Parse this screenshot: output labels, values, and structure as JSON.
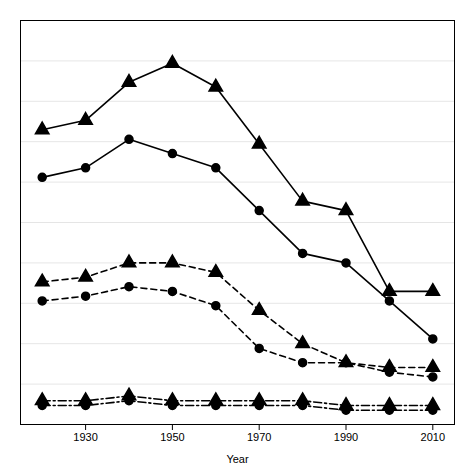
{
  "chart_data": {
    "type": "line",
    "x": [
      1920,
      1930,
      1940,
      1950,
      1960,
      1970,
      1980,
      1990,
      2000,
      2010
    ],
    "xlabel": "Year",
    "xlim": [
      1915,
      2015
    ],
    "xticks": [
      1930,
      1950,
      1970,
      1990,
      2010
    ],
    "ylim": [
      0,
      85
    ],
    "yticks": [
      0,
      8.5,
      17,
      25.5,
      34,
      42.5,
      51,
      59.5,
      68,
      76.5,
      85
    ],
    "grid": true,
    "tick_labels": "x",
    "series": [
      {
        "color": "#000000",
        "marker": "triangle",
        "line_style": "solid",
        "values": [
          62,
          64,
          72,
          76,
          71,
          59,
          47,
          45,
          28,
          28
        ]
      },
      {
        "color": "#000000",
        "marker": "circle",
        "line_style": "solid",
        "values": [
          52,
          54,
          60,
          57,
          54,
          45,
          36,
          34,
          26,
          18
        ]
      },
      {
        "color": "#000000",
        "marker": "triangle",
        "line_style": "dashed",
        "values": [
          30,
          31,
          34,
          34,
          32,
          24,
          17,
          13,
          12,
          12
        ]
      },
      {
        "color": "#000000",
        "marker": "circle",
        "line_style": "dashed",
        "values": [
          26,
          27,
          29,
          28,
          25,
          16,
          13,
          13,
          11,
          10
        ]
      },
      {
        "color": "#000000",
        "marker": "triangle",
        "line_style": "dashdot",
        "values": [
          5,
          5,
          6,
          5,
          5,
          5,
          5,
          4,
          4,
          4
        ]
      },
      {
        "color": "#000000",
        "marker": "circle",
        "line_style": "dashdot",
        "values": [
          4,
          4,
          5,
          4,
          4,
          4,
          4,
          3,
          3,
          3
        ]
      }
    ]
  }
}
